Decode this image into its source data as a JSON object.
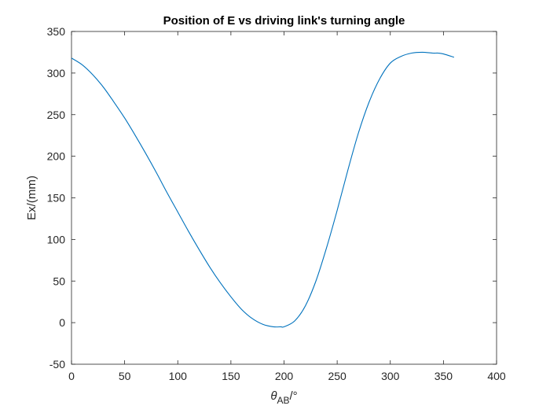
{
  "chart_data": {
    "type": "line",
    "title": "Position of E vs driving link's turning angle",
    "xlabel": {
      "main": "θ",
      "sub": "AB",
      "suffix": "/°"
    },
    "ylabel": "Ex/(mm)",
    "xlim": [
      0,
      400
    ],
    "ylim": [
      -50,
      350
    ],
    "xticks": [
      "0",
      "50",
      "100",
      "150",
      "200",
      "250",
      "300",
      "350",
      "400"
    ],
    "yticks": [
      "-50",
      "0",
      "50",
      "100",
      "150",
      "200",
      "250",
      "300",
      "350"
    ],
    "grid": false,
    "line_color": "#0072BD",
    "series": [
      {
        "x": [
          0,
          10,
          20,
          30,
          40,
          50,
          60,
          70,
          80,
          90,
          100,
          110,
          120,
          130,
          140,
          150,
          160,
          170,
          180,
          190,
          197,
          200,
          210,
          220,
          230,
          240,
          250,
          260,
          270,
          280,
          290,
          300,
          310,
          320,
          330,
          340,
          345,
          350,
          360
        ],
        "y": [
          318,
          310,
          298,
          283,
          265,
          246,
          225,
          203,
          180,
          156,
          133,
          110,
          88,
          67,
          48,
          31,
          16,
          5,
          -2,
          -5,
          -5,
          -5,
          2,
          20,
          50,
          90,
          135,
          183,
          228,
          265,
          293,
          312,
          320,
          324,
          325,
          324,
          324,
          323,
          319
        ]
      }
    ]
  }
}
